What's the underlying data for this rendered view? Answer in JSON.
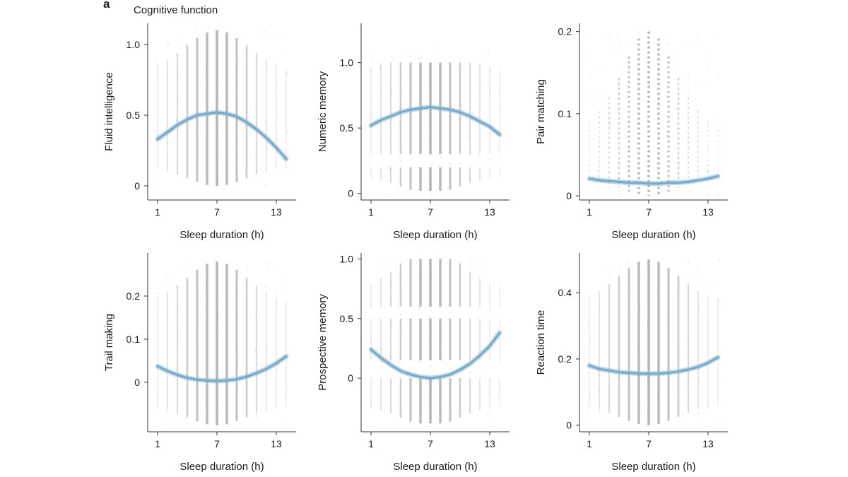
{
  "figure": {
    "panel_letter": "a",
    "title": "Cognitive function"
  },
  "colors": {
    "curve": "#6aaed6",
    "band": "#9fb4c2",
    "points": "#8c8c8c",
    "axis": "#333333"
  },
  "chart_data": [
    {
      "type": "scatter",
      "title": "Fluid intelligence",
      "xlabel": "Sleep duration (h)",
      "ylabel": "Fluid intelligence",
      "xlim": [
        0,
        15
      ],
      "ylim": [
        -0.1,
        1.15
      ],
      "xticks": [
        1,
        7,
        13
      ],
      "xtick_labels": [
        "1",
        "7",
        "13"
      ],
      "yticks": [
        0,
        0.5,
        1.0
      ],
      "ytick_labels": [
        "0",
        "0.5",
        "1.0"
      ],
      "scatter_range": [
        0,
        1.1
      ],
      "scatter_style": "continuous",
      "fit_curve": {
        "x": [
          1,
          2,
          3,
          4,
          5,
          6,
          7,
          8,
          9,
          10,
          11,
          12,
          13,
          14
        ],
        "y": [
          0.33,
          0.38,
          0.43,
          0.47,
          0.5,
          0.51,
          0.52,
          0.51,
          0.49,
          0.45,
          0.4,
          0.34,
          0.27,
          0.19
        ]
      }
    },
    {
      "type": "scatter",
      "title": "Numeric memory",
      "xlabel": "Sleep duration (h)",
      "ylabel": "Numeric memory",
      "xlim": [
        0,
        15
      ],
      "ylim": [
        -0.05,
        1.3
      ],
      "xticks": [
        1,
        7,
        13
      ],
      "xtick_labels": [
        "1",
        "7",
        "13"
      ],
      "yticks": [
        0,
        0.5,
        1.0
      ],
      "ytick_labels": [
        "0",
        "0.5",
        "1.0"
      ],
      "scatter_range": [
        0,
        1.1
      ],
      "scatter_style": "banded",
      "scatter_bands": [
        [
          0.02,
          0.2
        ],
        [
          0.3,
          1.0
        ]
      ],
      "fit_curve": {
        "x": [
          1,
          2,
          3,
          4,
          5,
          6,
          7,
          8,
          9,
          10,
          11,
          12,
          13,
          14
        ],
        "y": [
          0.52,
          0.56,
          0.59,
          0.62,
          0.64,
          0.65,
          0.66,
          0.65,
          0.64,
          0.62,
          0.59,
          0.55,
          0.51,
          0.45
        ]
      }
    },
    {
      "type": "scatter",
      "title": "Pair matching",
      "xlabel": "Sleep duration (h)",
      "ylabel": "Pair matching",
      "xlim": [
        0,
        15
      ],
      "ylim": [
        -0.005,
        0.21
      ],
      "xticks": [
        1,
        7,
        13
      ],
      "xtick_labels": [
        "1",
        "7",
        "13"
      ],
      "yticks": [
        0,
        0.1,
        0.2
      ],
      "ytick_labels": [
        "0",
        "0.1",
        "0.2"
      ],
      "scatter_range": [
        0,
        0.2
      ],
      "scatter_style": "dashed",
      "fit_curve": {
        "x": [
          1,
          2,
          3,
          4,
          5,
          6,
          7,
          8,
          9,
          10,
          11,
          12,
          13,
          14
        ],
        "y": [
          0.021,
          0.019,
          0.018,
          0.017,
          0.016,
          0.016,
          0.015,
          0.015,
          0.016,
          0.016,
          0.017,
          0.019,
          0.021,
          0.024
        ]
      }
    },
    {
      "type": "scatter",
      "title": "Trail making",
      "xlabel": "Sleep duration (h)",
      "ylabel": "Trail making",
      "xlim": [
        0,
        15
      ],
      "ylim": [
        -0.115,
        0.3
      ],
      "xticks": [
        1,
        7,
        13
      ],
      "xtick_labels": [
        "1",
        "7",
        "13"
      ],
      "yticks": [
        0,
        0.1,
        0.2
      ],
      "ytick_labels": [
        "0",
        "0.1",
        "0.2"
      ],
      "scatter_range": [
        -0.1,
        0.28
      ],
      "scatter_style": "continuous",
      "fit_curve": {
        "x": [
          1,
          2,
          3,
          4,
          5,
          6,
          7,
          8,
          9,
          10,
          11,
          12,
          13,
          14
        ],
        "y": [
          0.037,
          0.026,
          0.017,
          0.01,
          0.006,
          0.004,
          0.003,
          0.004,
          0.007,
          0.013,
          0.021,
          0.031,
          0.044,
          0.06
        ]
      }
    },
    {
      "type": "scatter",
      "title": "Prospective memory",
      "xlabel": "Sleep duration (h)",
      "ylabel": "Prospective memory",
      "xlim": [
        0,
        15
      ],
      "ylim": [
        -0.45,
        1.05
      ],
      "xticks": [
        1,
        7,
        13
      ],
      "xtick_labels": [
        "1",
        "7",
        "13"
      ],
      "yticks": [
        0,
        0.5,
        1.0
      ],
      "ytick_labels": [
        "0",
        "0.5",
        "1.0"
      ],
      "scatter_range": [
        -0.4,
        1.0
      ],
      "scatter_style": "banded",
      "scatter_bands": [
        [
          -0.38,
          0.0
        ],
        [
          0.15,
          0.5
        ],
        [
          0.6,
          1.0
        ]
      ],
      "fit_curve": {
        "x": [
          1,
          2,
          3,
          4,
          5,
          6,
          7,
          8,
          9,
          10,
          11,
          12,
          13,
          14
        ],
        "y": [
          0.24,
          0.17,
          0.11,
          0.06,
          0.03,
          0.01,
          0.0,
          0.01,
          0.03,
          0.07,
          0.12,
          0.19,
          0.27,
          0.38
        ]
      }
    },
    {
      "type": "scatter",
      "title": "Reaction time",
      "xlabel": "Sleep duration (h)",
      "ylabel": "Reaction time",
      "xlim": [
        0,
        15
      ],
      "ylim": [
        -0.02,
        0.52
      ],
      "xticks": [
        1,
        7,
        13
      ],
      "xtick_labels": [
        "1",
        "7",
        "13"
      ],
      "yticks": [
        0,
        0.2,
        0.4
      ],
      "ytick_labels": [
        "0",
        "0.2",
        "0.4"
      ],
      "scatter_range": [
        0.0,
        0.5
      ],
      "scatter_style": "continuous",
      "fit_curve": {
        "x": [
          1,
          2,
          3,
          4,
          5,
          6,
          7,
          8,
          9,
          10,
          11,
          12,
          13,
          14
        ],
        "y": [
          0.18,
          0.17,
          0.165,
          0.16,
          0.158,
          0.156,
          0.155,
          0.156,
          0.158,
          0.162,
          0.168,
          0.176,
          0.188,
          0.205
        ]
      }
    }
  ]
}
